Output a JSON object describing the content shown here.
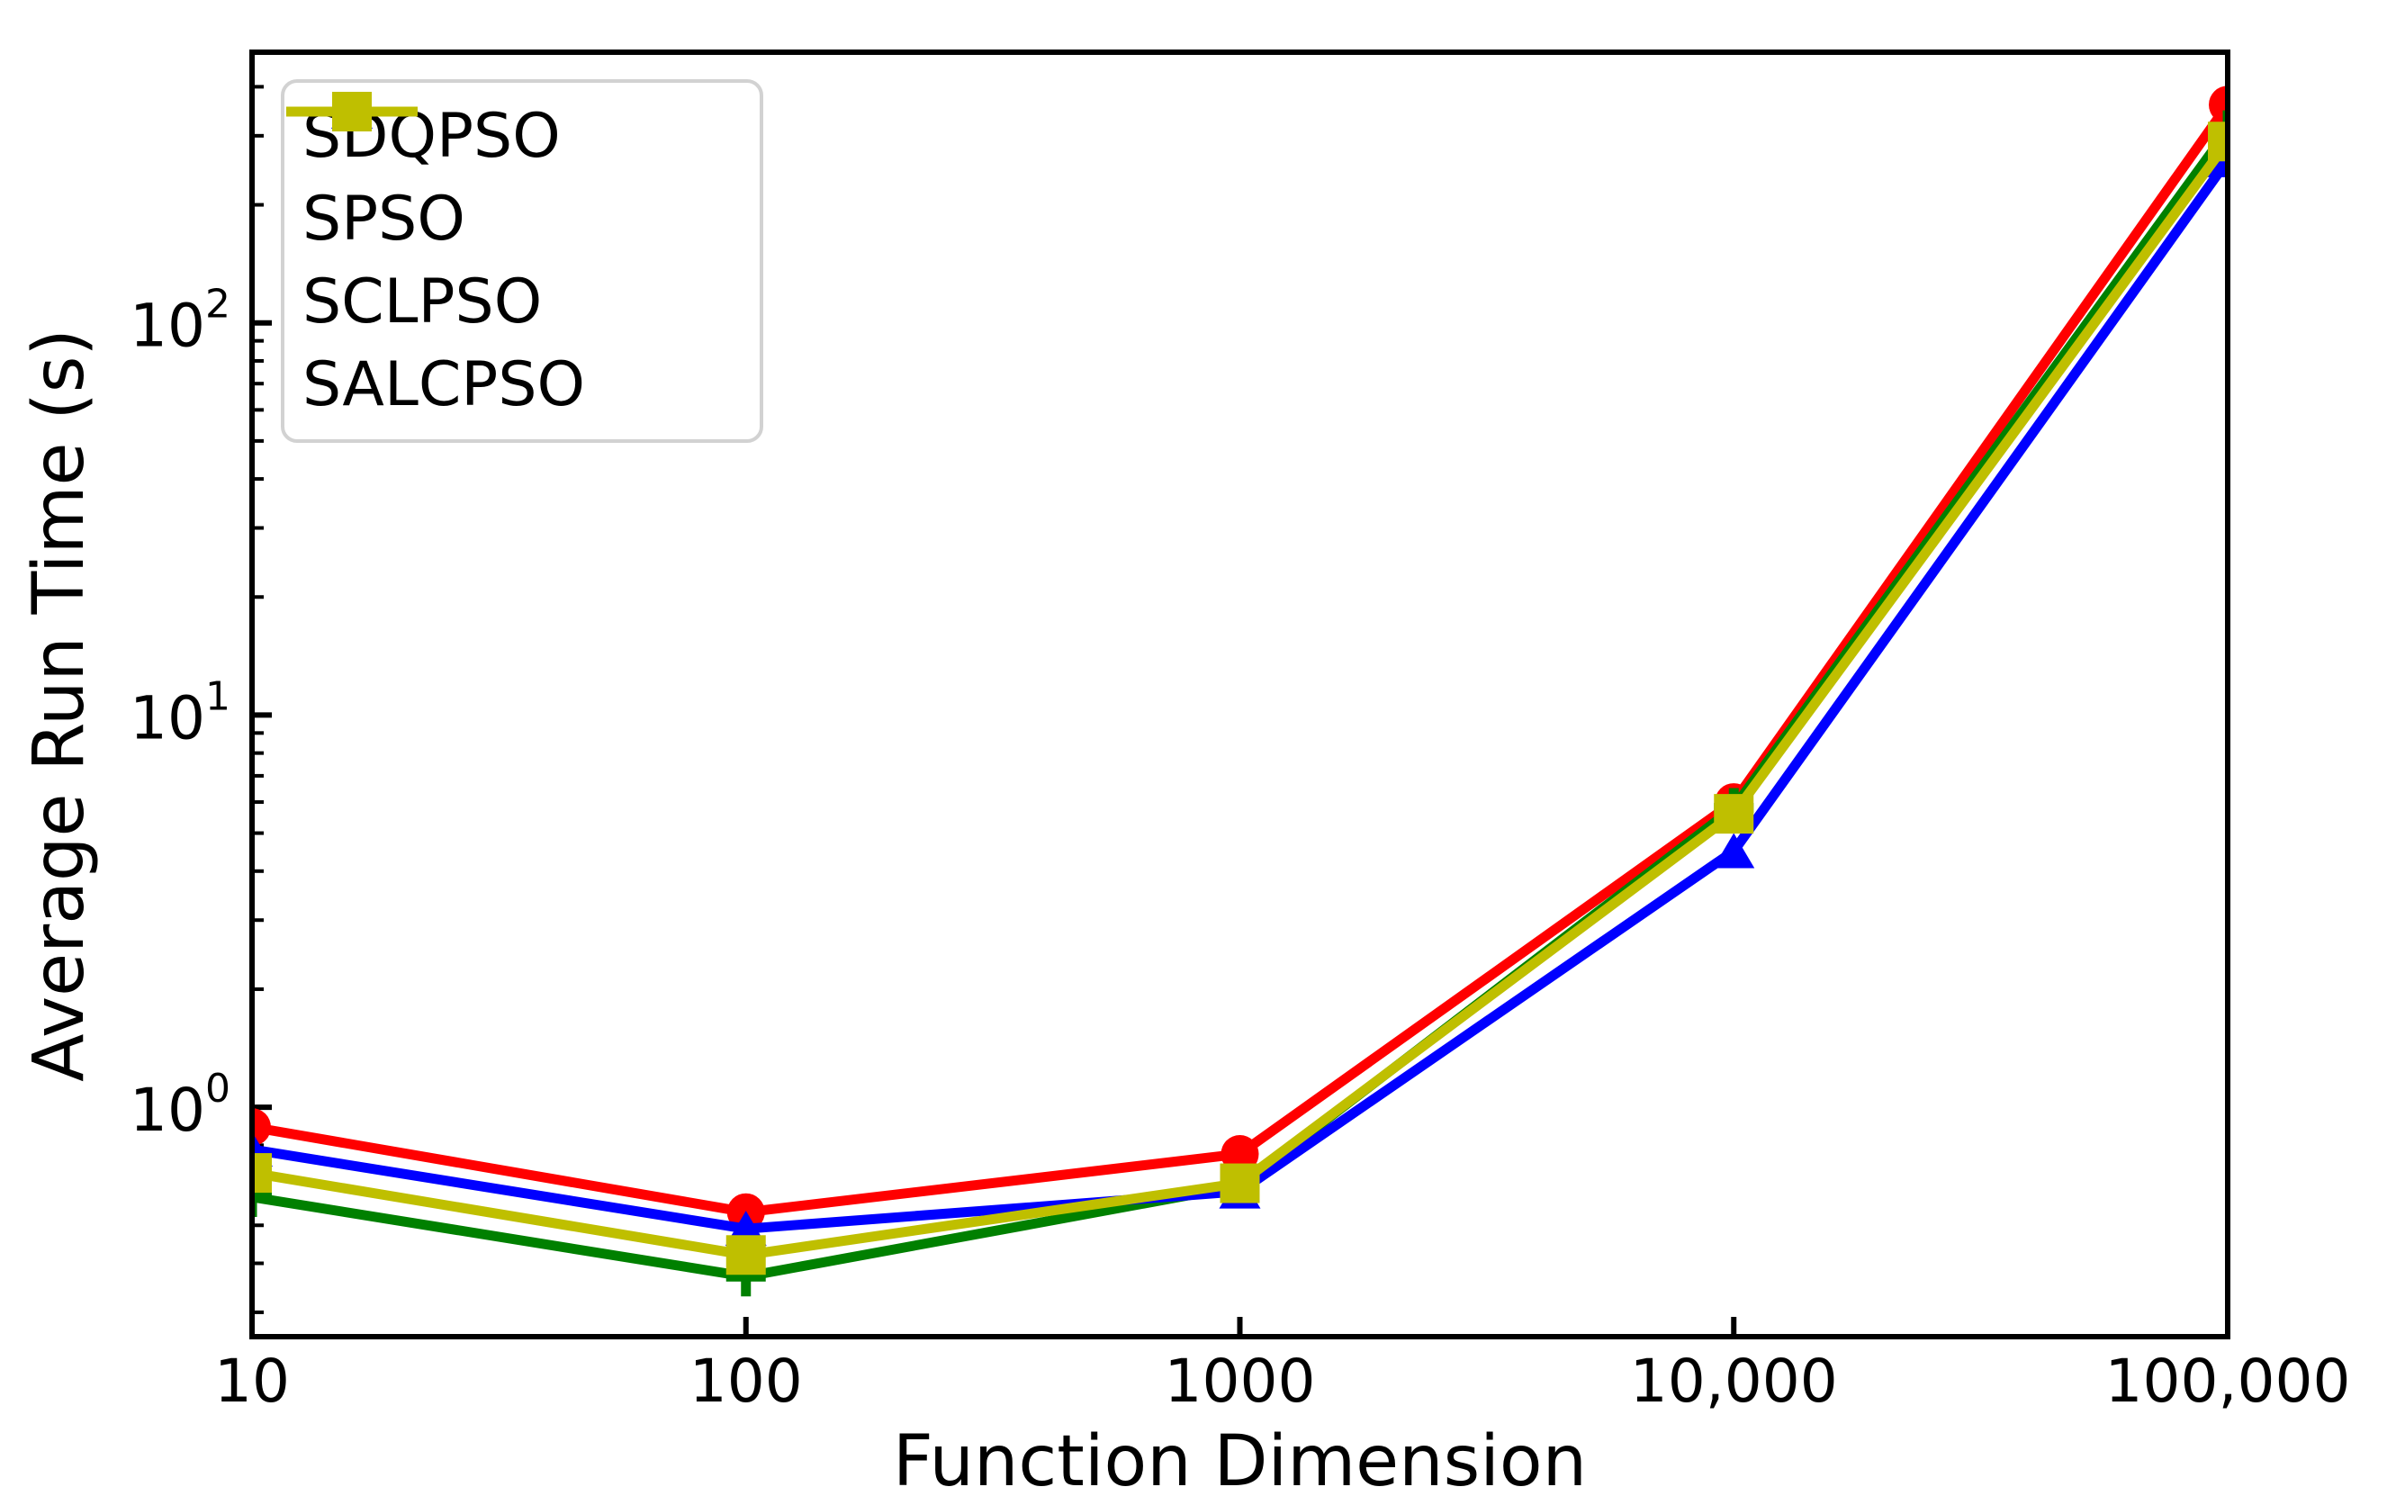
{
  "chart_data": {
    "type": "line",
    "title": "",
    "xlabel": "Function Dimension",
    "ylabel": "Average Run Time (s)",
    "x_scale": "log",
    "y_scale": "log",
    "xlim": [
      10,
      100000
    ],
    "ylim": [
      0.26,
      490
    ],
    "grid": false,
    "legend_position": "upper left",
    "x": [
      10,
      100,
      1000,
      10000,
      100000
    ],
    "x_tick_labels": [
      "10",
      "100",
      "1000",
      "10,000",
      "100,000"
    ],
    "y_ticks": [
      {
        "value": 1,
        "base": "10",
        "exponent": "0"
      },
      {
        "value": 10,
        "base": "10",
        "exponent": "1"
      },
      {
        "value": 100,
        "base": "10",
        "exponent": "2"
      }
    ],
    "series": [
      {
        "name": "SDQPSO",
        "color": "#ff0000",
        "marker": "circle",
        "values": [
          0.89,
          0.54,
          0.76,
          6.0,
          360
        ]
      },
      {
        "name": "SPSO",
        "color": "#008000",
        "marker": "plus",
        "values": [
          0.59,
          0.37,
          0.63,
          5.8,
          310
        ]
      },
      {
        "name": "SCLPSO",
        "color": "#0000ff",
        "marker": "triangle-up",
        "values": [
          0.78,
          0.49,
          0.61,
          4.5,
          260
        ]
      },
      {
        "name": "SALCPSO",
        "color": "#bfbf00",
        "marker": "square",
        "values": [
          0.68,
          0.42,
          0.64,
          5.6,
          290
        ]
      }
    ]
  }
}
